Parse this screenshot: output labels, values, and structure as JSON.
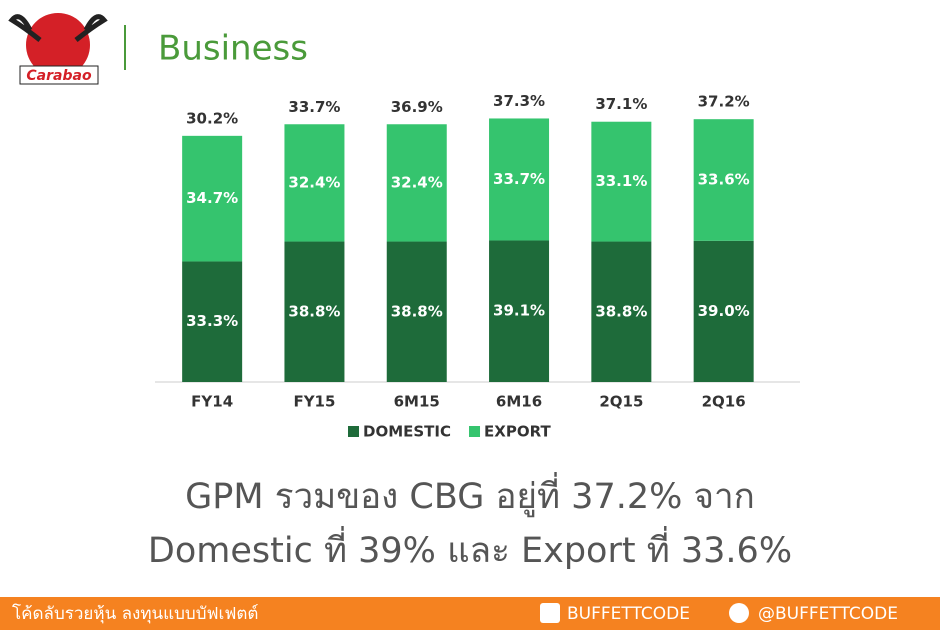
{
  "logo": "Carabao",
  "header": {
    "title": "Business"
  },
  "chart_data": {
    "type": "bar",
    "stacked": true,
    "categories": [
      "FY14",
      "FY15",
      "6M15",
      "6M16",
      "2Q15",
      "2Q16"
    ],
    "series": [
      {
        "name": "DOMESTIC",
        "color": "#1e6b3a",
        "values": [
          33.3,
          38.8,
          38.8,
          39.1,
          38.8,
          39.0
        ],
        "value_labels": [
          "33.3%",
          "38.8%",
          "38.8%",
          "39.1%",
          "38.8%",
          "39.0%"
        ]
      },
      {
        "name": "EXPORT",
        "color": "#35c46e",
        "values": [
          34.7,
          32.4,
          32.4,
          33.7,
          33.1,
          33.6
        ],
        "value_labels": [
          "34.7%",
          "32.4%",
          "32.4%",
          "33.7%",
          "33.1%",
          "33.6%"
        ]
      }
    ],
    "totals": {
      "values": [
        30.2,
        33.7,
        36.9,
        37.3,
        37.1,
        37.2
      ],
      "value_labels": [
        "30.2%",
        "33.7%",
        "36.9%",
        "37.3%",
        "37.1%",
        "37.2%"
      ]
    },
    "legend": "bottom"
  },
  "caption": [
    "GPM รวมของ CBG อยู่ที่ 37.2% จาก",
    "Domestic ที่ 39% และ Export ที่ 33.6%"
  ],
  "footer": {
    "slogan": "โค้ดลับรวยหุ้น ลงทุนแบบบัฟเฟตต์",
    "facebook": "BUFFETTCODE",
    "line": "@BUFFETTCODE"
  }
}
